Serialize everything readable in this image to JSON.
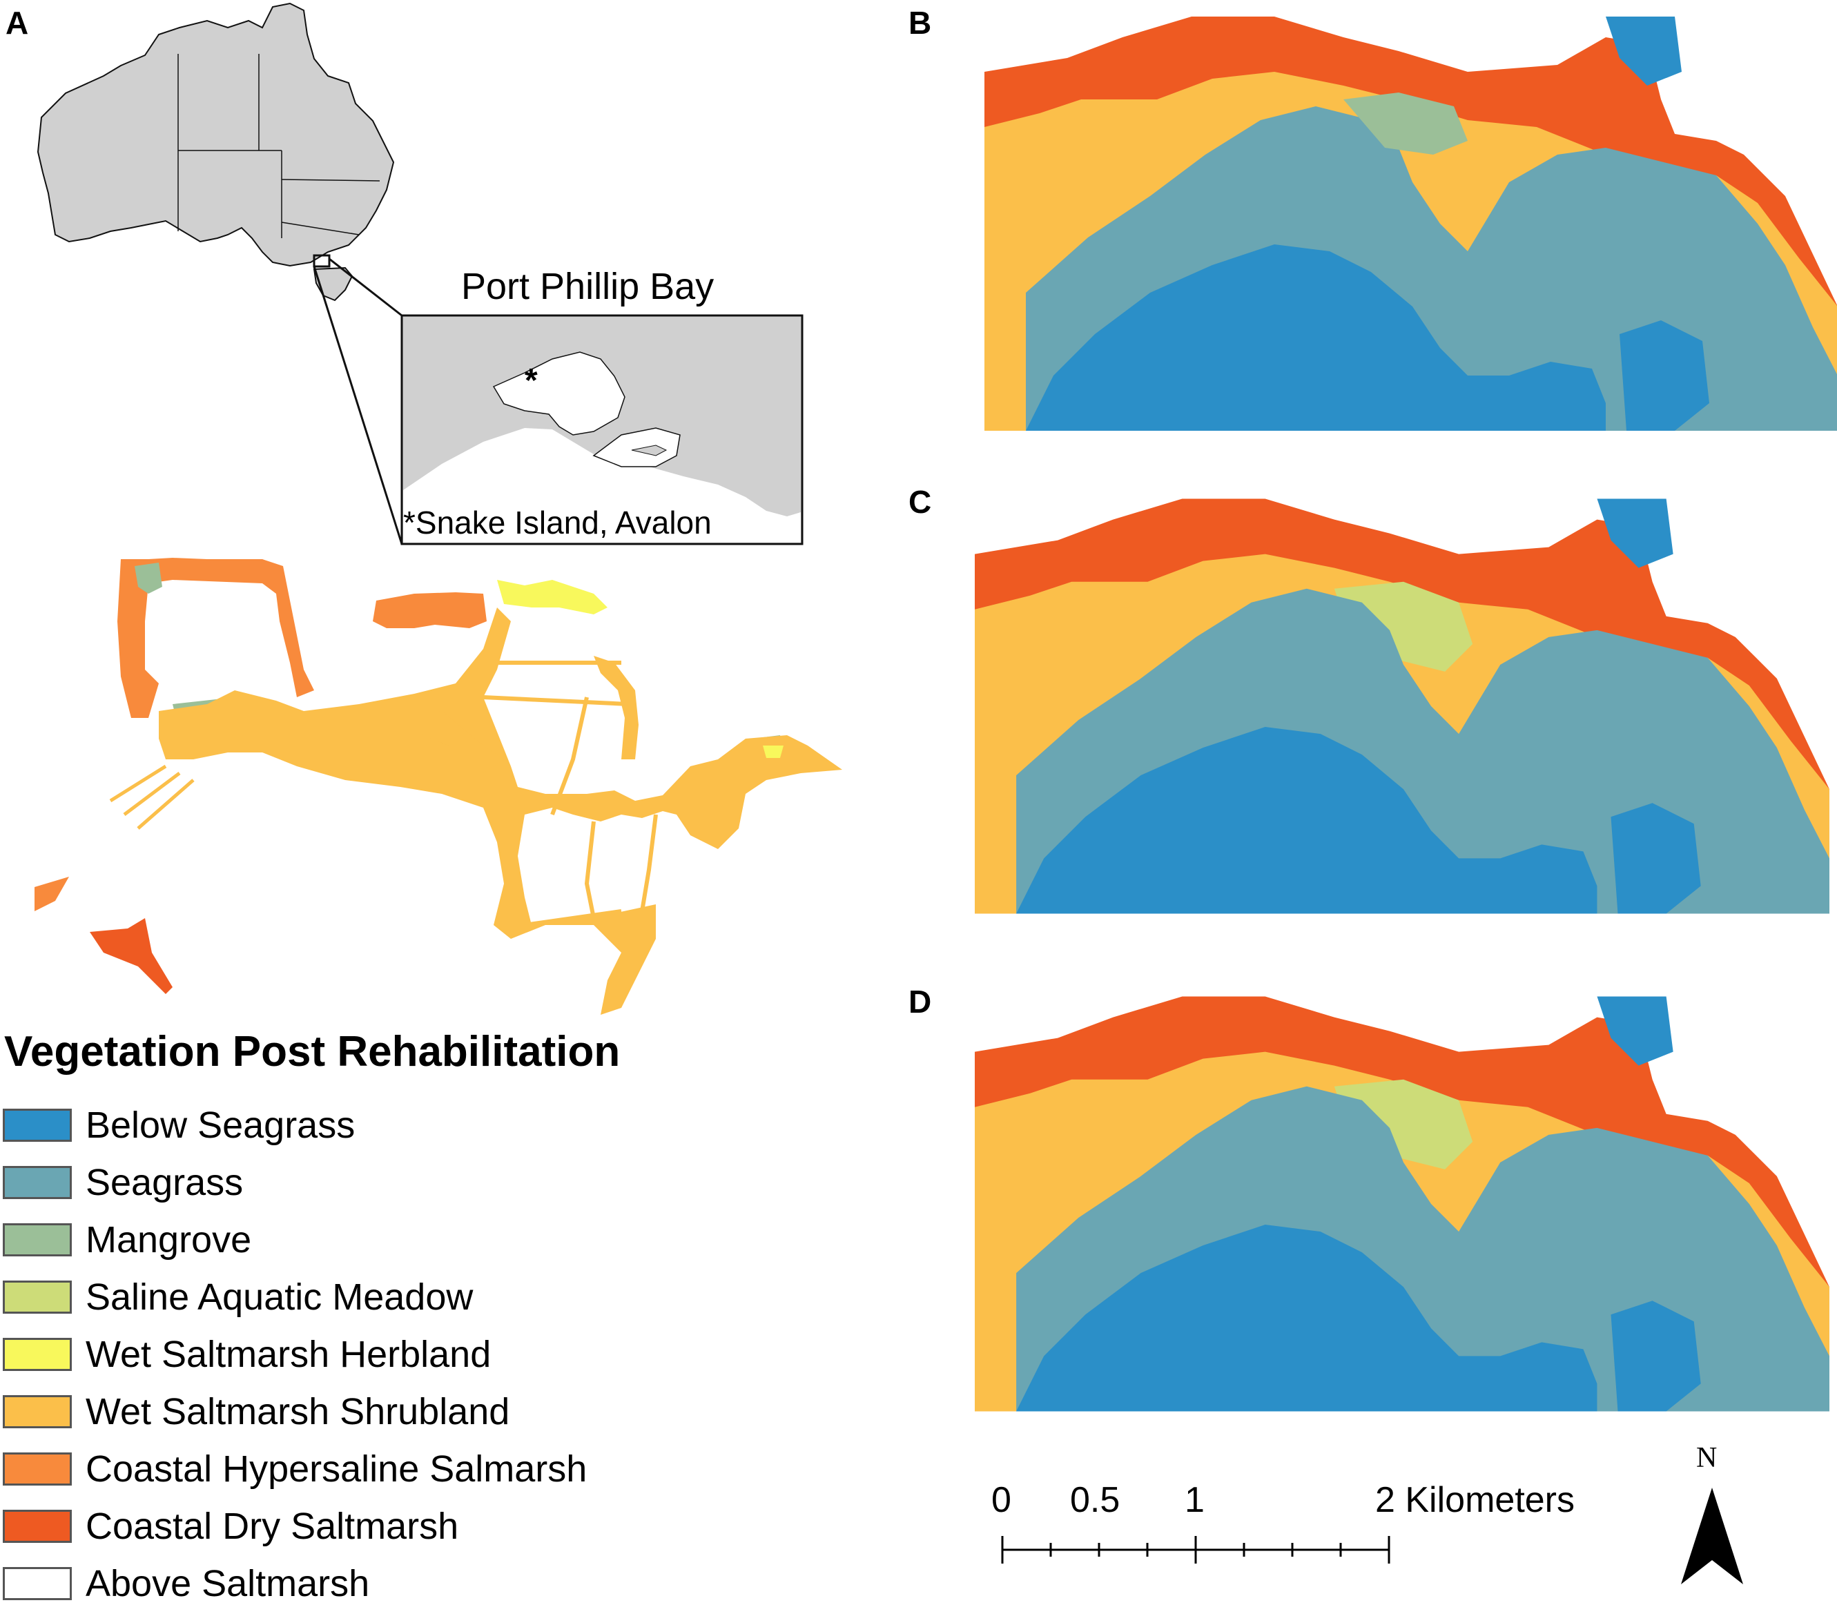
{
  "panels": {
    "a": "A",
    "b": "B",
    "c": "C",
    "d": "D"
  },
  "inset": {
    "title": "Port Phillip Bay",
    "site_marker": "*",
    "site_note": "*Snake Island, Avalon"
  },
  "legend": {
    "title": "Vegetation Post Rehabilitation",
    "items": [
      {
        "label": "Below Seagrass",
        "color": "#2b8fc8"
      },
      {
        "label": "Seagrass",
        "color": "#6aa6b3"
      },
      {
        "label": "Mangrove",
        "color": "#9bbf98"
      },
      {
        "label": "Saline Aquatic Meadow",
        "color": "#cddc78"
      },
      {
        "label": "Wet Saltmarsh Herbland",
        "color": "#f8f85c"
      },
      {
        "label": "Wet Saltmarsh Shrubland",
        "color": "#fbbf4a"
      },
      {
        "label": "Coastal Hypersaline Salmarsh",
        "color": "#f88a3c"
      },
      {
        "label": "Coastal Dry Saltmarsh",
        "color": "#ee5a22"
      },
      {
        "label": "Above Saltmarsh",
        "color": "#ffffff"
      }
    ]
  },
  "scale_bar": {
    "ticks": [
      "0",
      "0.5",
      "1",
      "2 Kilometers"
    ]
  },
  "north_arrow": {
    "label": "N"
  },
  "colors": {
    "land_gray": "#d0d0d0",
    "below_seagrass": "#2b8fc8",
    "seagrass": "#6aa6b3",
    "dry_saltmarsh": "#ee5a22",
    "hypersaline": "#f88a3c",
    "shrubland": "#fbbf4a",
    "herbland": "#f8f85c",
    "meadow": "#cddc78",
    "mangrove": "#9bbf98"
  }
}
